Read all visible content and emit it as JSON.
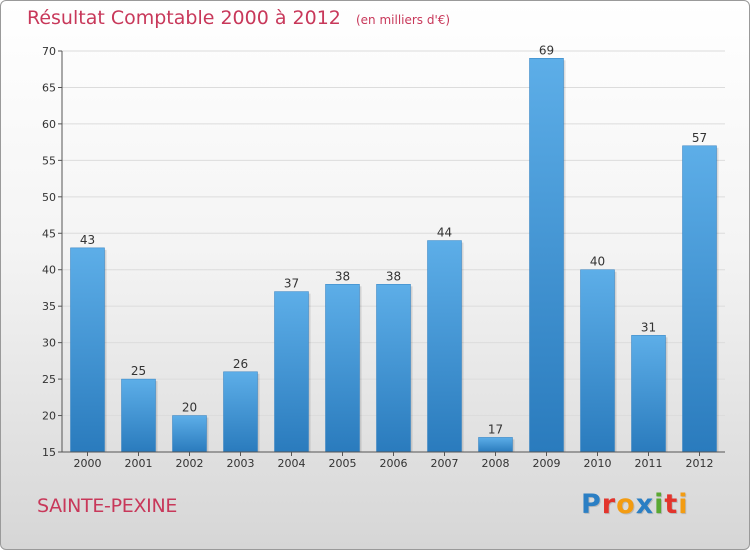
{
  "title": "Résultat Comptable 2000 à 2012",
  "subtitle": "(en milliers d'€)",
  "commune": "SAINTE-PEXINE",
  "logo": {
    "text": "Proxiti",
    "letters": [
      {
        "char": "P",
        "color": "#2b7fc4"
      },
      {
        "char": "r",
        "color": "#e2342c"
      },
      {
        "char": "o",
        "color": "#f39c12"
      },
      {
        "char": "x",
        "color": "#2b7fc4"
      },
      {
        "char": "i",
        "color": "#5aa832"
      },
      {
        "char": "t",
        "color": "#e2342c"
      },
      {
        "char": "i",
        "color": "#f39c12"
      }
    ]
  },
  "colors": {
    "accent": "#c8385a",
    "bar_top": "#5daee8",
    "bar_bottom": "#2a7bbd",
    "grid": "#dcdcdc",
    "axis": "#555555"
  },
  "chart_data": {
    "type": "bar",
    "title": "Résultat Comptable 2000 à 2012",
    "subtitle": "(en milliers d'€)",
    "xlabel": "",
    "ylabel": "",
    "categories": [
      "2000",
      "2001",
      "2002",
      "2003",
      "2004",
      "2005",
      "2006",
      "2007",
      "2008",
      "2009",
      "2010",
      "2011",
      "2012"
    ],
    "values": [
      43,
      25,
      20,
      26,
      37,
      38,
      38,
      44,
      17,
      69,
      40,
      31,
      57
    ],
    "ylim": [
      15,
      70
    ],
    "yticks": [
      15,
      20,
      25,
      30,
      35,
      40,
      45,
      50,
      55,
      60,
      65,
      70
    ],
    "grid": true,
    "legend": "none"
  }
}
